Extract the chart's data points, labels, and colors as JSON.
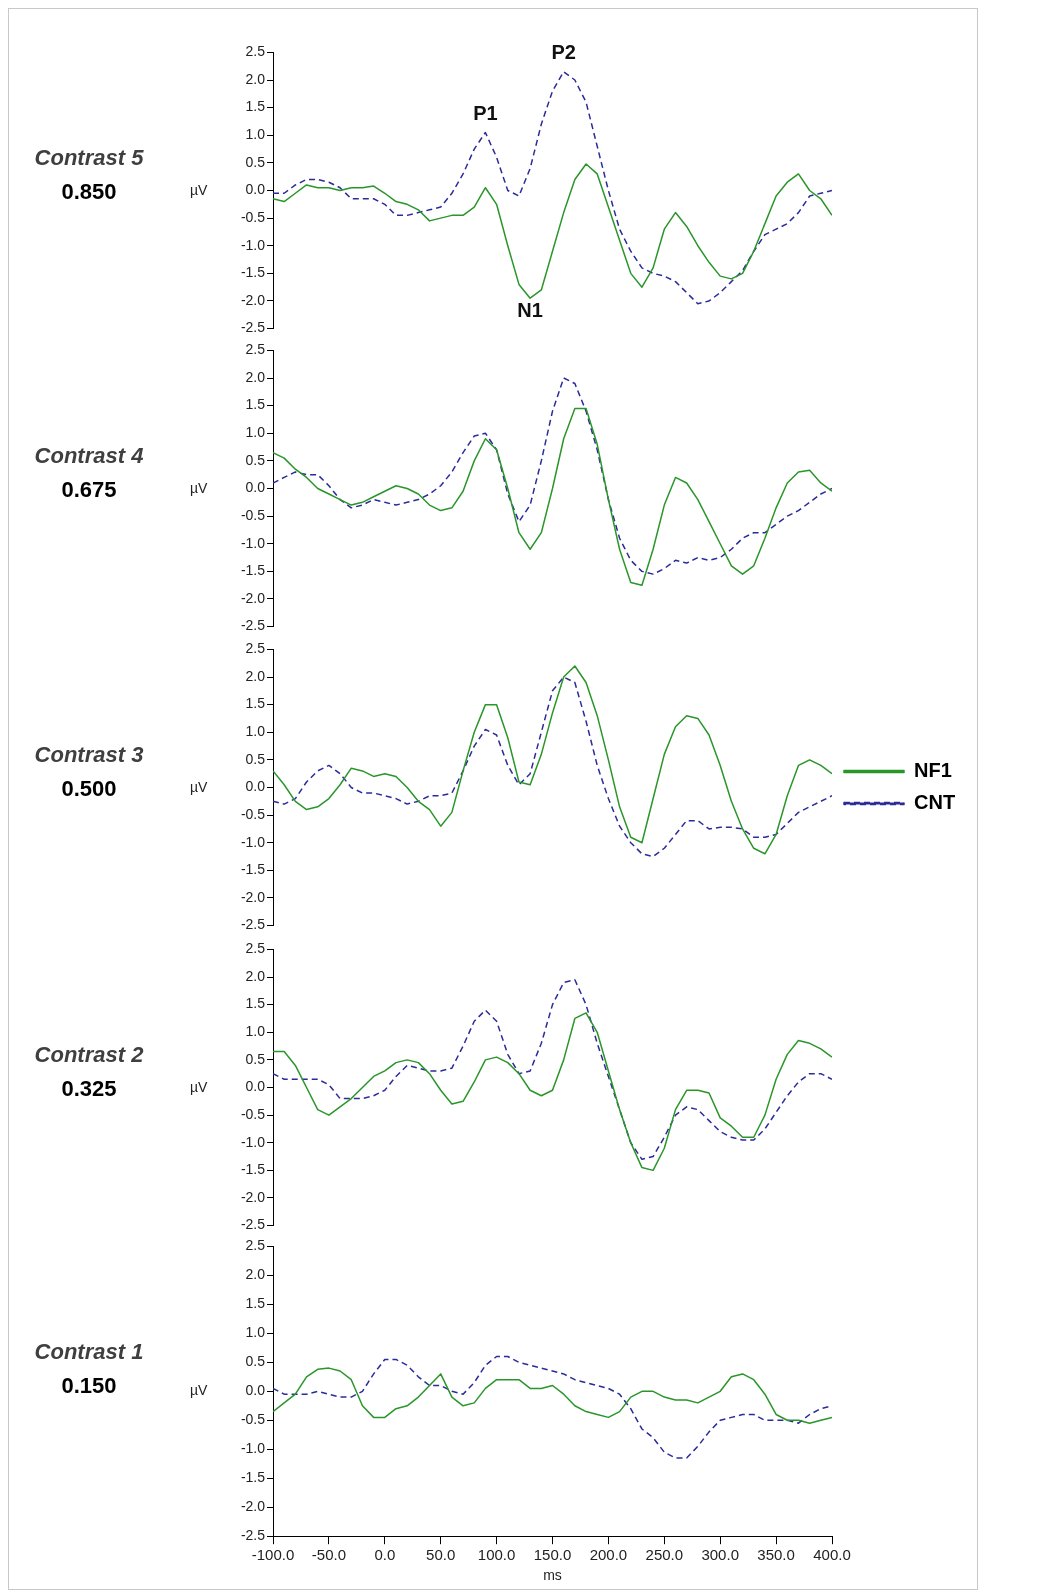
{
  "chart_data": [
    {
      "type": "line",
      "title": "Contrast 5",
      "subtitle": "0.850",
      "ylabel": "µV",
      "ylim": [
        -2.5,
        2.5
      ],
      "xlim": [
        -100,
        400
      ],
      "tick_labels": "y",
      "grid": false,
      "legend": false,
      "yticks": [
        {
          "value": 2.5,
          "label": "2.5"
        },
        {
          "value": 2.0,
          "label": "2.0"
        },
        {
          "value": 1.5,
          "label": "1.5"
        },
        {
          "value": 1.0,
          "label": "1.0"
        },
        {
          "value": 0.5,
          "label": "0.5"
        },
        {
          "value": 0,
          "label": "0.0"
        },
        {
          "value": -0.5,
          "label": "-0.5"
        },
        {
          "value": -1.0,
          "label": "-1.0"
        },
        {
          "value": -1.5,
          "label": "-1.5"
        },
        {
          "value": -2.0,
          "label": "-2.0"
        },
        {
          "value": -2.5,
          "label": "-2.5"
        }
      ],
      "annotations": [
        {
          "text": "P1",
          "x": 90,
          "y": 1.05
        },
        {
          "text": "P2",
          "x": 160,
          "y": 2.15
        },
        {
          "text": "N1",
          "x": 130,
          "y": -1.95
        }
      ],
      "x": [
        -100,
        -90,
        -80,
        -70,
        -60,
        -50,
        -40,
        -30,
        -20,
        -10,
        0,
        10,
        20,
        30,
        40,
        50,
        60,
        70,
        80,
        90,
        100,
        110,
        120,
        130,
        140,
        150,
        160,
        170,
        180,
        190,
        200,
        210,
        220,
        230,
        240,
        250,
        260,
        270,
        280,
        290,
        300,
        310,
        320,
        330,
        340,
        350,
        360,
        370,
        380,
        390,
        400
      ],
      "series": [
        {
          "color": "#2a962a",
          "line_style": "solid",
          "values": [
            -0.15,
            -0.2,
            -0.05,
            0.1,
            0.05,
            0.05,
            0.0,
            0.05,
            0.05,
            0.08,
            -0.05,
            -0.2,
            -0.25,
            -0.35,
            -0.55,
            -0.5,
            -0.45,
            -0.45,
            -0.3,
            0.05,
            -0.25,
            -1.0,
            -1.7,
            -1.95,
            -1.8,
            -1.1,
            -0.4,
            0.2,
            0.48,
            0.3,
            -0.3,
            -0.9,
            -1.5,
            -1.75,
            -1.4,
            -0.7,
            -0.4,
            -0.65,
            -1.0,
            -1.3,
            -1.55,
            -1.6,
            -1.5,
            -1.1,
            -0.6,
            -0.1,
            0.15,
            0.3,
            0.0,
            -0.15,
            -0.45
          ]
        },
        {
          "color": "#2b2b9a",
          "line_style": "dashed",
          "values": [
            -0.05,
            -0.05,
            0.1,
            0.2,
            0.2,
            0.15,
            0.05,
            -0.15,
            -0.15,
            -0.15,
            -0.25,
            -0.45,
            -0.45,
            -0.4,
            -0.35,
            -0.3,
            -0.05,
            0.3,
            0.75,
            1.05,
            0.6,
            0.0,
            -0.1,
            0.4,
            1.2,
            1.8,
            2.15,
            2.0,
            1.6,
            0.8,
            0.0,
            -0.7,
            -1.1,
            -1.4,
            -1.5,
            -1.55,
            -1.65,
            -1.85,
            -2.05,
            -2.0,
            -1.85,
            -1.65,
            -1.45,
            -1.1,
            -0.8,
            -0.7,
            -0.6,
            -0.4,
            -0.1,
            -0.05,
            0.0
          ]
        }
      ]
    },
    {
      "type": "line",
      "title": "Contrast 4",
      "subtitle": "0.675",
      "ylabel": "µV",
      "ylim": [
        -2.5,
        2.5
      ],
      "xlim": [
        -100,
        400
      ],
      "tick_labels": "y",
      "grid": false,
      "legend": false,
      "yticks": [
        {
          "value": 2.5,
          "label": "2.5"
        },
        {
          "value": 2.0,
          "label": "2.0"
        },
        {
          "value": 1.5,
          "label": "1.5"
        },
        {
          "value": 1.0,
          "label": "1.0"
        },
        {
          "value": 0.5,
          "label": "0.5"
        },
        {
          "value": 0,
          "label": "0.0"
        },
        {
          "value": -0.5,
          "label": "-0.5"
        },
        {
          "value": -1.0,
          "label": "-1.0"
        },
        {
          "value": -1.5,
          "label": "-1.5"
        },
        {
          "value": -2.0,
          "label": "-2.0"
        },
        {
          "value": -2.5,
          "label": "-2.5"
        }
      ],
      "x": [
        -100,
        -90,
        -80,
        -70,
        -60,
        -50,
        -40,
        -30,
        -20,
        -10,
        0,
        10,
        20,
        30,
        40,
        50,
        60,
        70,
        80,
        90,
        100,
        110,
        120,
        130,
        140,
        150,
        160,
        170,
        180,
        190,
        200,
        210,
        220,
        230,
        240,
        250,
        260,
        270,
        280,
        290,
        300,
        310,
        320,
        330,
        340,
        350,
        360,
        370,
        380,
        390,
        400
      ],
      "series": [
        {
          "color": "#2a962a",
          "line_style": "solid",
          "values": [
            0.65,
            0.55,
            0.35,
            0.2,
            0.0,
            -0.1,
            -0.2,
            -0.3,
            -0.25,
            -0.15,
            -0.05,
            0.05,
            0.0,
            -0.1,
            -0.3,
            -0.4,
            -0.35,
            -0.05,
            0.5,
            0.9,
            0.7,
            0.0,
            -0.8,
            -1.1,
            -0.8,
            0.0,
            0.9,
            1.45,
            1.45,
            0.8,
            -0.2,
            -1.1,
            -1.7,
            -1.75,
            -1.1,
            -0.3,
            0.2,
            0.1,
            -0.2,
            -0.6,
            -1.0,
            -1.4,
            -1.55,
            -1.4,
            -0.9,
            -0.35,
            0.1,
            0.3,
            0.33,
            0.1,
            -0.05
          ]
        },
        {
          "color": "#2b2b9a",
          "line_style": "dashed",
          "values": [
            0.1,
            0.2,
            0.3,
            0.25,
            0.25,
            0.05,
            -0.2,
            -0.35,
            -0.3,
            -0.2,
            -0.25,
            -0.3,
            -0.25,
            -0.2,
            -0.1,
            0.05,
            0.3,
            0.65,
            0.95,
            1.0,
            0.7,
            -0.1,
            -0.6,
            -0.3,
            0.5,
            1.4,
            2.0,
            1.9,
            1.4,
            0.7,
            -0.2,
            -0.9,
            -1.3,
            -1.5,
            -1.55,
            -1.45,
            -1.3,
            -1.35,
            -1.25,
            -1.3,
            -1.25,
            -1.1,
            -0.9,
            -0.8,
            -0.8,
            -0.65,
            -0.5,
            -0.4,
            -0.25,
            -0.1,
            0.0
          ]
        }
      ]
    },
    {
      "type": "line",
      "title": "Contrast 3",
      "subtitle": "0.500",
      "ylabel": "µV",
      "ylim": [
        -2.5,
        2.5
      ],
      "xlim": [
        -100,
        400
      ],
      "tick_labels": "y",
      "grid": false,
      "legend": "right",
      "yticks": [
        {
          "value": 2.5,
          "label": "2.5"
        },
        {
          "value": 2.0,
          "label": "2.0"
        },
        {
          "value": 1.5,
          "label": "1.5"
        },
        {
          "value": 1.0,
          "label": "1.0"
        },
        {
          "value": 0.5,
          "label": "0.5"
        },
        {
          "value": 0,
          "label": "0.0"
        },
        {
          "value": -0.5,
          "label": "-0.5"
        },
        {
          "value": -1.0,
          "label": "-1.0"
        },
        {
          "value": -1.5,
          "label": "-1.5"
        },
        {
          "value": -2.0,
          "label": "-2.0"
        },
        {
          "value": -2.5,
          "label": "-2.5"
        }
      ],
      "x": [
        -100,
        -90,
        -80,
        -70,
        -60,
        -50,
        -40,
        -30,
        -20,
        -10,
        0,
        10,
        20,
        30,
        40,
        50,
        60,
        70,
        80,
        90,
        100,
        110,
        120,
        130,
        140,
        150,
        160,
        170,
        180,
        190,
        200,
        210,
        220,
        230,
        240,
        250,
        260,
        270,
        280,
        290,
        300,
        310,
        320,
        330,
        340,
        350,
        360,
        370,
        380,
        390,
        400
      ],
      "series": [
        {
          "name": "NF1",
          "color": "#2a962a",
          "line_style": "solid",
          "values": [
            0.3,
            0.05,
            -0.25,
            -0.4,
            -0.35,
            -0.2,
            0.05,
            0.35,
            0.3,
            0.2,
            0.25,
            0.2,
            0.0,
            -0.25,
            -0.4,
            -0.7,
            -0.45,
            0.3,
            1.0,
            1.5,
            1.5,
            0.9,
            0.1,
            0.05,
            0.6,
            1.35,
            2.0,
            2.2,
            1.9,
            1.3,
            0.5,
            -0.35,
            -0.9,
            -1.0,
            -0.2,
            0.6,
            1.1,
            1.3,
            1.25,
            0.95,
            0.4,
            -0.25,
            -0.75,
            -1.1,
            -1.2,
            -0.85,
            -0.15,
            0.4,
            0.5,
            0.4,
            0.25
          ]
        },
        {
          "name": "CNT",
          "color": "#2b2b9a",
          "line_style": "dashed",
          "values": [
            -0.25,
            -0.3,
            -0.2,
            0.1,
            0.3,
            0.4,
            0.25,
            0.0,
            -0.1,
            -0.1,
            -0.15,
            -0.2,
            -0.3,
            -0.25,
            -0.15,
            -0.15,
            -0.1,
            0.3,
            0.75,
            1.05,
            0.95,
            0.4,
            0.05,
            0.25,
            1.0,
            1.75,
            2.0,
            1.9,
            1.2,
            0.4,
            -0.2,
            -0.7,
            -1.0,
            -1.2,
            -1.25,
            -1.1,
            -0.85,
            -0.6,
            -0.6,
            -0.75,
            -0.72,
            -0.72,
            -0.75,
            -0.9,
            -0.9,
            -0.85,
            -0.65,
            -0.45,
            -0.35,
            -0.25,
            -0.15
          ]
        }
      ]
    },
    {
      "type": "line",
      "title": "Contrast 2",
      "subtitle": "0.325",
      "ylabel": "µV",
      "ylim": [
        -2.5,
        2.5
      ],
      "xlim": [
        -100,
        400
      ],
      "tick_labels": "y",
      "grid": false,
      "legend": false,
      "yticks": [
        {
          "value": 2.5,
          "label": "2.5"
        },
        {
          "value": 2.0,
          "label": "2.0"
        },
        {
          "value": 1.5,
          "label": "1.5"
        },
        {
          "value": 1.0,
          "label": "1.0"
        },
        {
          "value": 0.5,
          "label": "0.5"
        },
        {
          "value": 0,
          "label": "0.0"
        },
        {
          "value": -0.5,
          "label": "-0.5"
        },
        {
          "value": -1.0,
          "label": "-1.0"
        },
        {
          "value": -1.5,
          "label": "-1.5"
        },
        {
          "value": -2.0,
          "label": "-2.0"
        },
        {
          "value": -2.5,
          "label": "-2.5"
        }
      ],
      "x": [
        -100,
        -90,
        -80,
        -70,
        -60,
        -50,
        -40,
        -30,
        -20,
        -10,
        0,
        10,
        20,
        30,
        40,
        50,
        60,
        70,
        80,
        90,
        100,
        110,
        120,
        130,
        140,
        150,
        160,
        170,
        180,
        190,
        200,
        210,
        220,
        230,
        240,
        250,
        260,
        270,
        280,
        290,
        300,
        310,
        320,
        330,
        340,
        350,
        360,
        370,
        380,
        390,
        400
      ],
      "series": [
        {
          "color": "#2a962a",
          "line_style": "solid",
          "values": [
            0.65,
            0.65,
            0.4,
            0.0,
            -0.4,
            -0.5,
            -0.35,
            -0.2,
            0.0,
            0.2,
            0.3,
            0.45,
            0.5,
            0.45,
            0.25,
            -0.05,
            -0.3,
            -0.25,
            0.1,
            0.5,
            0.55,
            0.45,
            0.25,
            -0.05,
            -0.15,
            -0.05,
            0.5,
            1.25,
            1.35,
            1.0,
            0.3,
            -0.4,
            -1.0,
            -1.45,
            -1.5,
            -1.1,
            -0.4,
            -0.05,
            -0.05,
            -0.1,
            -0.55,
            -0.7,
            -0.9,
            -0.9,
            -0.5,
            0.15,
            0.6,
            0.85,
            0.8,
            0.7,
            0.55
          ]
        },
        {
          "color": "#2b2b9a",
          "line_style": "dashed",
          "values": [
            0.25,
            0.15,
            0.15,
            0.15,
            0.15,
            0.05,
            -0.2,
            -0.2,
            -0.2,
            -0.15,
            -0.05,
            0.2,
            0.4,
            0.35,
            0.3,
            0.3,
            0.35,
            0.75,
            1.2,
            1.4,
            1.2,
            0.6,
            0.25,
            0.3,
            0.8,
            1.5,
            1.9,
            1.95,
            1.5,
            0.8,
            0.2,
            -0.4,
            -1.0,
            -1.3,
            -1.25,
            -0.9,
            -0.5,
            -0.35,
            -0.4,
            -0.6,
            -0.8,
            -0.9,
            -0.95,
            -0.95,
            -0.75,
            -0.45,
            -0.15,
            0.1,
            0.25,
            0.25,
            0.15
          ]
        }
      ]
    },
    {
      "type": "line",
      "title": "Contrast 1",
      "subtitle": "0.150",
      "ylabel": "µV",
      "xlabel": "ms",
      "ylim": [
        -2.5,
        2.5
      ],
      "xlim": [
        -100,
        400
      ],
      "grid": false,
      "legend": false,
      "yticks": [
        {
          "value": 2.5,
          "label": "2.5"
        },
        {
          "value": 2.0,
          "label": "2.0"
        },
        {
          "value": 1.5,
          "label": "1.5"
        },
        {
          "value": 1.0,
          "label": "1.0"
        },
        {
          "value": 0.5,
          "label": "0.5"
        },
        {
          "value": 0,
          "label": "0.0"
        },
        {
          "value": -0.5,
          "label": "-0.5"
        },
        {
          "value": -1.0,
          "label": "-1.0"
        },
        {
          "value": -1.5,
          "label": "-1.5"
        },
        {
          "value": -2.0,
          "label": "-2.0"
        },
        {
          "value": -2.5,
          "label": "-2.5"
        }
      ],
      "xticks": [
        {
          "value": -100,
          "label": "-100.0"
        },
        {
          "value": -50,
          "label": "-50.0"
        },
        {
          "value": 0,
          "label": "0.0"
        },
        {
          "value": 50,
          "label": "50.0"
        },
        {
          "value": 100,
          "label": "100.0"
        },
        {
          "value": 150,
          "label": "150.0"
        },
        {
          "value": 200,
          "label": "200.0"
        },
        {
          "value": 250,
          "label": "250.0"
        },
        {
          "value": 300,
          "label": "300.0"
        },
        {
          "value": 350,
          "label": "350.0"
        },
        {
          "value": 400,
          "label": "400.0"
        }
      ],
      "x": [
        -100,
        -90,
        -80,
        -70,
        -60,
        -50,
        -40,
        -30,
        -20,
        -10,
        0,
        10,
        20,
        30,
        40,
        50,
        60,
        70,
        80,
        90,
        100,
        110,
        120,
        130,
        140,
        150,
        160,
        170,
        180,
        190,
        200,
        210,
        220,
        230,
        240,
        250,
        260,
        270,
        280,
        290,
        300,
        310,
        320,
        330,
        340,
        350,
        360,
        370,
        380,
        390,
        400
      ],
      "series": [
        {
          "color": "#2a962a",
          "line_style": "solid",
          "values": [
            -0.35,
            -0.2,
            -0.05,
            0.25,
            0.38,
            0.4,
            0.35,
            0.2,
            -0.25,
            -0.45,
            -0.45,
            -0.3,
            -0.25,
            -0.1,
            0.1,
            0.3,
            -0.1,
            -0.25,
            -0.2,
            0.05,
            0.2,
            0.2,
            0.2,
            0.05,
            0.05,
            0.1,
            -0.05,
            -0.25,
            -0.35,
            -0.4,
            -0.45,
            -0.35,
            -0.1,
            0.0,
            0.0,
            -0.1,
            -0.15,
            -0.15,
            -0.2,
            -0.1,
            0.0,
            0.25,
            0.3,
            0.2,
            -0.05,
            -0.4,
            -0.5,
            -0.5,
            -0.55,
            -0.5,
            -0.45
          ]
        },
        {
          "color": "#2b2b9a",
          "line_style": "dashed",
          "values": [
            0.05,
            -0.05,
            -0.05,
            -0.05,
            0.0,
            -0.05,
            -0.1,
            -0.1,
            0.0,
            0.3,
            0.55,
            0.55,
            0.45,
            0.25,
            0.1,
            0.1,
            0.0,
            -0.05,
            0.15,
            0.45,
            0.6,
            0.6,
            0.5,
            0.45,
            0.4,
            0.35,
            0.3,
            0.2,
            0.15,
            0.1,
            0.05,
            -0.05,
            -0.3,
            -0.65,
            -0.8,
            -1.05,
            -1.15,
            -1.15,
            -0.95,
            -0.7,
            -0.5,
            -0.45,
            -0.4,
            -0.4,
            -0.5,
            -0.5,
            -0.5,
            -0.55,
            -0.4,
            -0.3,
            -0.25
          ]
        }
      ]
    }
  ]
}
